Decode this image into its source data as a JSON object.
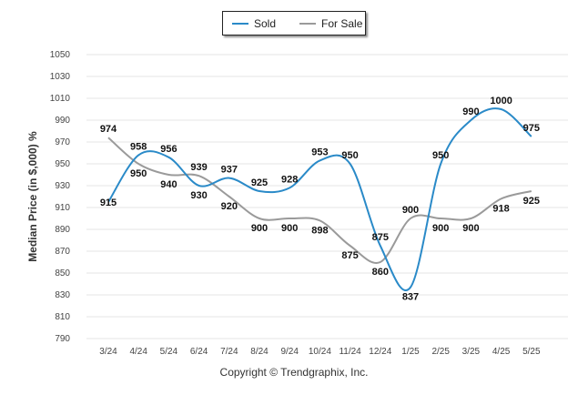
{
  "legend": {
    "sold_label": "Sold",
    "forsale_label": "For Sale"
  },
  "footer": {
    "copyright": "Copyright © Trendgraphix, Inc."
  },
  "chart_data": {
    "type": "line",
    "ylabel": "Median Price (in $,000) %",
    "xlabel": "",
    "title": "",
    "categories": [
      "3/24",
      "4/24",
      "5/24",
      "6/24",
      "7/24",
      "8/24",
      "9/24",
      "10/24",
      "11/24",
      "12/24",
      "1/25",
      "2/25",
      "3/25",
      "4/25",
      "5/25"
    ],
    "ylim": [
      790,
      1050
    ],
    "yticks": [
      790,
      810,
      830,
      850,
      870,
      890,
      910,
      930,
      950,
      970,
      990,
      1010,
      1030,
      1050
    ],
    "grid": true,
    "legend_position": "top-center",
    "series": [
      {
        "name": "Sold",
        "color": "#2a8ac8",
        "values": [
          915,
          958,
          956,
          930,
          937,
          925,
          928,
          953,
          950,
          875,
          837,
          950,
          990,
          1000,
          975
        ]
      },
      {
        "name": "For Sale",
        "color": "#9a9a9a",
        "values": [
          974,
          950,
          940,
          939,
          920,
          900,
          900,
          898,
          875,
          860,
          900,
          900,
          900,
          918,
          925
        ]
      }
    ]
  }
}
